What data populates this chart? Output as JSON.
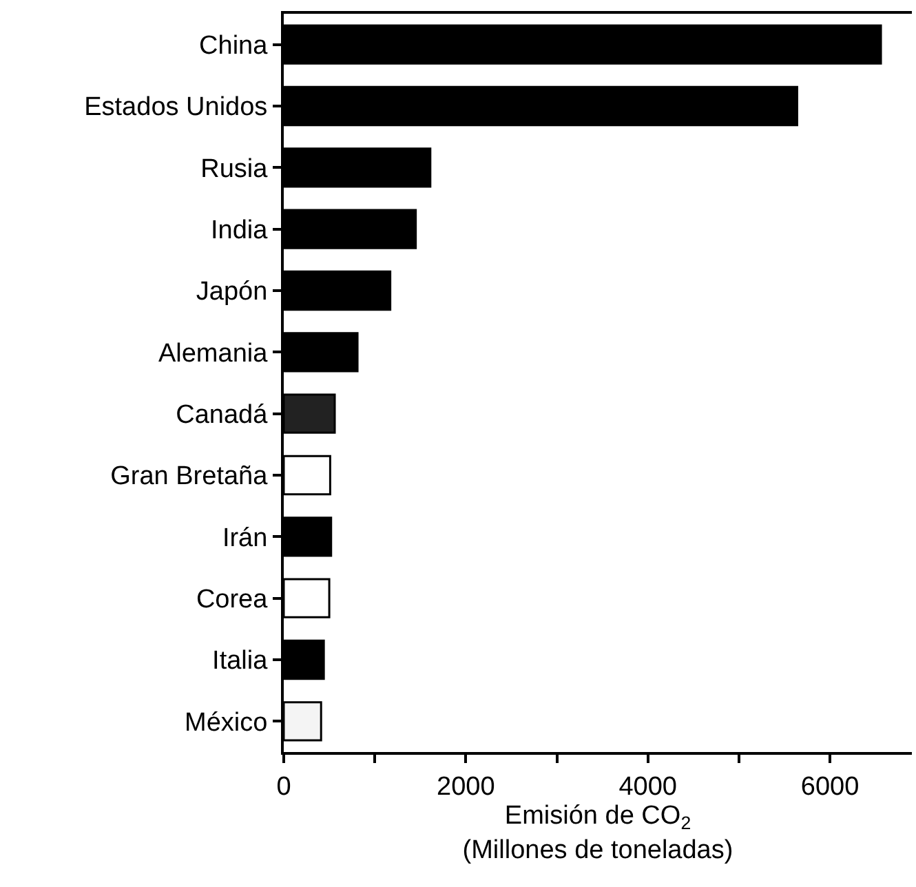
{
  "chart_data": {
    "type": "bar",
    "orientation": "horizontal",
    "categories": [
      "China",
      "Estados Unidos",
      "Rusia",
      "India",
      "Japón",
      "Alemania",
      "Canadá",
      "Gran Bretaña",
      "Irán",
      "Corea",
      "Italia",
      "México"
    ],
    "values": [
      6560,
      5640,
      1610,
      1450,
      1170,
      810,
      560,
      510,
      520,
      500,
      440,
      410
    ],
    "colors": [
      "#000000",
      "#000000",
      "#000000",
      "#000000",
      "#000000",
      "#000000",
      "#222222",
      "#ffffff",
      "#000000",
      "#ffffff",
      "#000000",
      "#f4f4f4"
    ],
    "xlabel": "Emisión de CO$_{2}$\n(Millones de toneladas)",
    "xlim": [
      0,
      6900
    ],
    "xticks": [
      0,
      {
        "value": 1000,
        "label": null
      },
      2000,
      {
        "value": 3000,
        "label": null
      },
      4000,
      {
        "value": 5000,
        "label": null
      },
      6000
    ],
    "legend": false
  }
}
